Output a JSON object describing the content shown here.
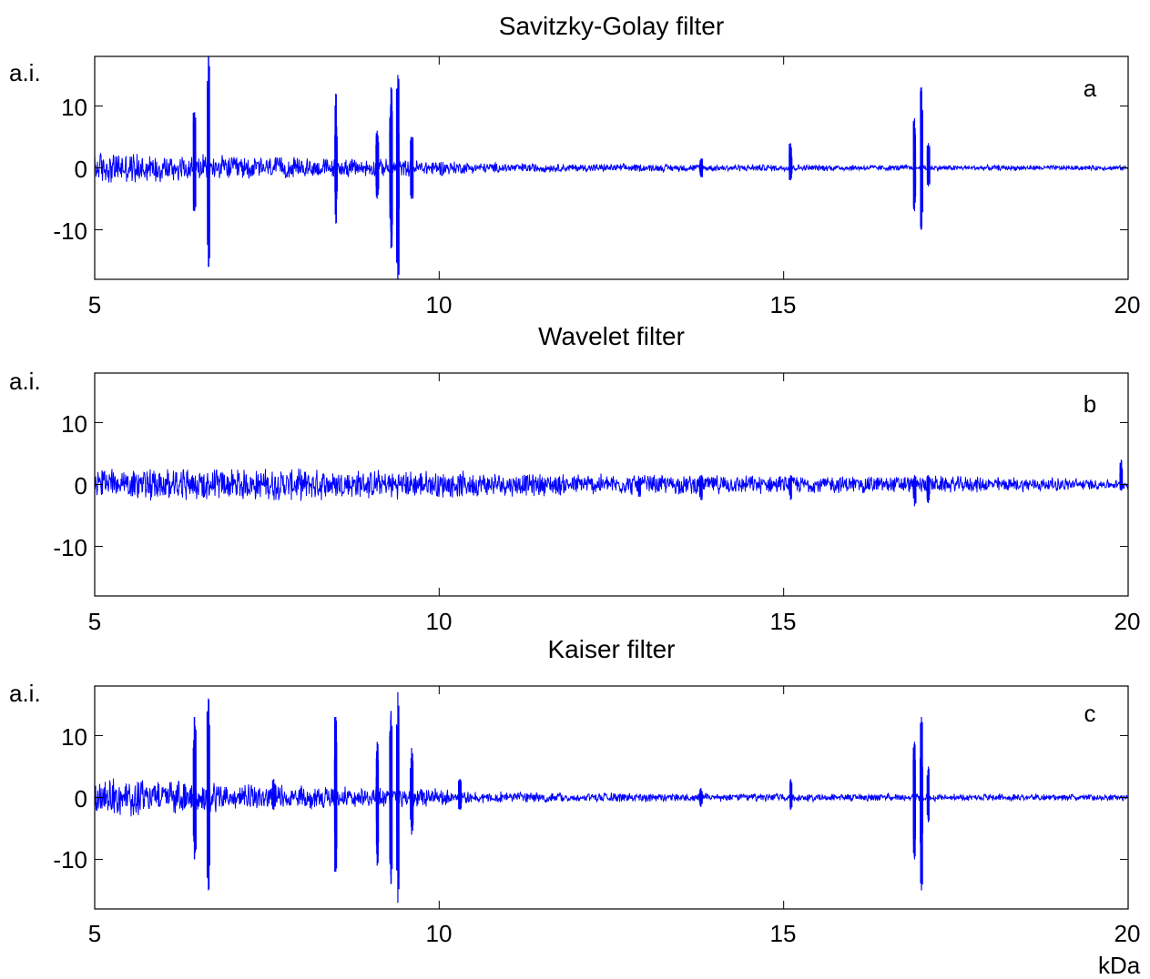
{
  "chart_data": [
    {
      "type": "line",
      "title": "Savitzky-Golay filter",
      "panel_label": "a",
      "ylabel": "a.i.",
      "xlabel": "",
      "xlim": [
        5,
        20
      ],
      "ylim": [
        -18,
        18
      ],
      "xticks": [
        "5",
        "10",
        "15",
        "20"
      ],
      "yticks": [
        "10",
        "0",
        "-10"
      ],
      "ytick_values": [
        10,
        0,
        -10
      ],
      "line_color": "#0000ff",
      "series": [
        {
          "noise": [
            [
              5,
              2.5
            ],
            [
              7,
              1.8
            ],
            [
              8.5,
              1.4
            ],
            [
              10,
              1.2
            ],
            [
              10.5,
              0.8
            ],
            [
              12,
              0.6
            ],
            [
              15,
              0.5
            ],
            [
              20,
              0.35
            ]
          ],
          "peaks": [
            [
              6.45,
              9,
              -7
            ],
            [
              6.65,
              18,
              -16
            ],
            [
              8.5,
              12,
              -9
            ],
            [
              9.1,
              6,
              -5
            ],
            [
              9.3,
              13,
              -13
            ],
            [
              9.4,
              15,
              -18
            ],
            [
              9.6,
              5,
              -5
            ],
            [
              13.8,
              1.5,
              -1.5
            ],
            [
              15.1,
              4,
              -2
            ],
            [
              16.9,
              8,
              -7
            ],
            [
              17.0,
              13,
              -10
            ],
            [
              17.1,
              4,
              -3
            ]
          ]
        }
      ]
    },
    {
      "type": "line",
      "title": "Wavelet filter",
      "panel_label": "b",
      "ylabel": "a.i.",
      "xlabel": "",
      "xlim": [
        5,
        20
      ],
      "ylim": [
        -18,
        18
      ],
      "xticks": [
        "5",
        "10",
        "15",
        "20"
      ],
      "yticks": [
        "10",
        "0",
        "-10"
      ],
      "ytick_values": [
        10,
        0,
        -10
      ],
      "line_color": "#0000ff",
      "series": [
        {
          "noise": [
            [
              5,
              2.3
            ],
            [
              8,
              2.3
            ],
            [
              10,
              2.0
            ],
            [
              11,
              1.7
            ],
            [
              13,
              1.5
            ],
            [
              15,
              1.3
            ],
            [
              17,
              1.3
            ],
            [
              19,
              1.0
            ],
            [
              20,
              0.6
            ]
          ],
          "peaks": [
            [
              12.9,
              1,
              -2
            ],
            [
              13.8,
              1.5,
              -2.5
            ],
            [
              15.1,
              1.5,
              -2.5
            ],
            [
              16.9,
              1.5,
              -3.5
            ],
            [
              17.1,
              1.5,
              -3
            ],
            [
              19.9,
              4,
              -1
            ]
          ]
        }
      ]
    },
    {
      "type": "line",
      "title": "Kaiser filter",
      "panel_label": "c",
      "ylabel": "a.i.",
      "xlabel": "kDa",
      "xlim": [
        5,
        20
      ],
      "ylim": [
        -18,
        18
      ],
      "xticks": [
        "5",
        "10",
        "15",
        "20"
      ],
      "yticks": [
        "10",
        "0",
        "-10"
      ],
      "ytick_values": [
        10,
        0,
        -10
      ],
      "line_color": "#0000ff",
      "series": [
        {
          "noise": [
            [
              5,
              3.0
            ],
            [
              6,
              2.5
            ],
            [
              7,
              2.0
            ],
            [
              8.5,
              1.6
            ],
            [
              10,
              1.3
            ],
            [
              10.5,
              0.9
            ],
            [
              12,
              0.7
            ],
            [
              15,
              0.6
            ],
            [
              20,
              0.45
            ]
          ],
          "peaks": [
            [
              6.45,
              13,
              -10
            ],
            [
              6.65,
              16,
              -15
            ],
            [
              7.6,
              3,
              -2
            ],
            [
              8.5,
              13,
              -12
            ],
            [
              9.1,
              9,
              -11
            ],
            [
              9.3,
              14,
              -14
            ],
            [
              9.4,
              17,
              -17
            ],
            [
              9.6,
              8,
              -6
            ],
            [
              10.3,
              3,
              -2
            ],
            [
              13.8,
              1.5,
              -1.5
            ],
            [
              15.1,
              3,
              -2
            ],
            [
              16.9,
              9,
              -10
            ],
            [
              17.0,
              13,
              -15
            ],
            [
              17.1,
              5,
              -4
            ]
          ]
        }
      ]
    }
  ]
}
